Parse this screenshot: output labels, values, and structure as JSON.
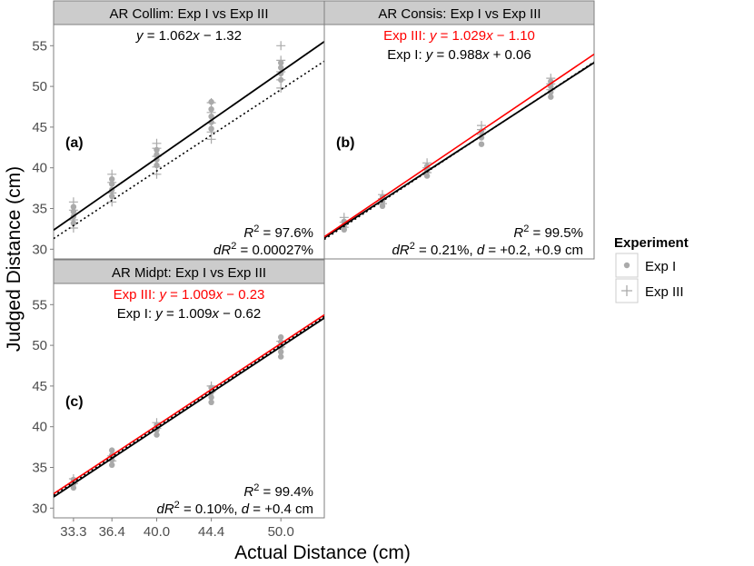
{
  "figure": {
    "xlabel": "Actual Distance (cm)",
    "ylabel": "Judged Distance (cm)",
    "x_ticks": [
      "33.3",
      "36.4",
      "40.0",
      "44.4",
      "50.0"
    ],
    "y_ticks": [
      "30",
      "35",
      "40",
      "45",
      "50",
      "55"
    ],
    "legend_title": "Experiment",
    "legend_items": [
      "Exp I",
      "Exp III"
    ]
  },
  "colors": {
    "exp3_line": "#ff0000",
    "exp1_line": "#000000",
    "points": "#aaaaaa",
    "strip": "#cccccc",
    "frame": "#7f7f7f"
  },
  "chart_data": [
    {
      "type": "scatter",
      "strip": "AR Collim: Exp I vs Exp III",
      "label": "(a)",
      "xlim": [
        31.7,
        53.5
      ],
      "ylim": [
        28.8,
        57.6
      ],
      "eq_lines": [
        "y = 1.062x − 1.32"
      ],
      "r2_line": "R² = 97.6%",
      "dr2_line": "dR² = 0.00027%",
      "fits": [
        {
          "series": "Exp I",
          "slope": 1.062,
          "intercept": -1.32,
          "style": "solid"
        },
        {
          "series": "Exp III",
          "slope": 1.0,
          "intercept": -0.4,
          "style": "dotted"
        }
      ],
      "points": {
        "Exp I": [
          [
            33.3,
            33.2
          ],
          [
            33.3,
            34.0
          ],
          [
            33.3,
            34.6
          ],
          [
            33.3,
            35.2
          ],
          [
            36.4,
            36.5
          ],
          [
            36.4,
            37.3
          ],
          [
            36.4,
            38.0
          ],
          [
            36.4,
            38.6
          ],
          [
            40.0,
            40.3
          ],
          [
            40.0,
            41.0
          ],
          [
            40.0,
            41.6
          ],
          [
            40.0,
            42.2
          ],
          [
            44.4,
            44.8
          ],
          [
            44.4,
            45.6
          ],
          [
            44.4,
            46.3
          ],
          [
            44.4,
            47.2
          ],
          [
            44.4,
            48.1
          ],
          [
            50.0,
            50.8
          ],
          [
            50.0,
            51.6
          ],
          [
            50.0,
            52.3
          ],
          [
            50.0,
            52.9
          ]
        ],
        "Exp III": [
          [
            33.3,
            32.6
          ],
          [
            33.3,
            33.6
          ],
          [
            33.3,
            34.8
          ],
          [
            33.3,
            35.8
          ],
          [
            36.4,
            35.8
          ],
          [
            36.4,
            36.9
          ],
          [
            36.4,
            38.2
          ],
          [
            36.4,
            39.2
          ],
          [
            40.0,
            39.2
          ],
          [
            40.0,
            40.1
          ],
          [
            40.0,
            41.4
          ],
          [
            40.0,
            42.4
          ],
          [
            40.0,
            43.0
          ],
          [
            44.4,
            43.5
          ],
          [
            44.4,
            44.4
          ],
          [
            44.4,
            45.5
          ],
          [
            44.4,
            46.8
          ],
          [
            44.4,
            48.0
          ],
          [
            50.0,
            49.8
          ],
          [
            50.0,
            50.8
          ],
          [
            50.0,
            51.8
          ],
          [
            50.0,
            53.2
          ],
          [
            50.0,
            55.0
          ]
        ]
      }
    },
    {
      "type": "scatter",
      "strip": "AR Consis: Exp I vs Exp III",
      "label": "(b)",
      "xlim": [
        31.7,
        53.5
      ],
      "ylim": [
        28.8,
        57.6
      ],
      "eq_lines_red": [
        "Exp III: y = 1.029x − 1.10"
      ],
      "eq_lines": [
        "Exp I: y = 0.988x + 0.06"
      ],
      "r2_line": "R² = 99.5%",
      "dr2_line": "dR² = 0.21%, d = +0.2, +0.9 cm",
      "fits": [
        {
          "series": "Exp III",
          "slope": 1.029,
          "intercept": -1.1,
          "style": "red"
        },
        {
          "series": "Exp I",
          "slope": 0.988,
          "intercept": 0.06,
          "style": "solid"
        },
        {
          "series": "All",
          "slope": 1.0,
          "intercept": -0.5,
          "style": "dotted"
        }
      ],
      "points": {
        "Exp I": [
          [
            33.3,
            32.4
          ],
          [
            33.3,
            32.9
          ],
          [
            33.3,
            33.4
          ],
          [
            36.4,
            35.3
          ],
          [
            36.4,
            35.9
          ],
          [
            36.4,
            36.4
          ],
          [
            40.0,
            39.0
          ],
          [
            40.0,
            39.6
          ],
          [
            40.0,
            40.2
          ],
          [
            44.4,
            42.9
          ],
          [
            44.4,
            43.7
          ],
          [
            44.4,
            44.5
          ],
          [
            50.0,
            48.7
          ],
          [
            50.0,
            49.3
          ],
          [
            50.0,
            50.0
          ],
          [
            50.0,
            50.6
          ]
        ],
        "Exp III": [
          [
            33.3,
            32.7
          ],
          [
            33.3,
            33.3
          ],
          [
            33.3,
            33.9
          ],
          [
            36.4,
            35.6
          ],
          [
            36.4,
            36.2
          ],
          [
            36.4,
            36.7
          ],
          [
            40.0,
            39.4
          ],
          [
            40.0,
            40.0
          ],
          [
            40.0,
            40.6
          ],
          [
            44.4,
            44.1
          ],
          [
            44.4,
            44.7
          ],
          [
            44.4,
            45.2
          ],
          [
            50.0,
            49.6
          ],
          [
            50.0,
            50.3
          ],
          [
            50.0,
            51.0
          ]
        ]
      }
    },
    {
      "type": "scatter",
      "strip": "AR Midpt: Exp I vs Exp III",
      "label": "(c)",
      "xlim": [
        31.7,
        53.5
      ],
      "ylim": [
        28.8,
        57.6
      ],
      "eq_lines_red": [
        "Exp III: y = 1.009x − 0.23"
      ],
      "eq_lines": [
        "Exp I: y = 1.009x − 0.62"
      ],
      "r2_line": "R² = 99.4%",
      "dr2_line": "dR² = 0.10%, d = +0.4 cm",
      "fits": [
        {
          "series": "Exp III",
          "slope": 1.009,
          "intercept": -0.23,
          "style": "red"
        },
        {
          "series": "Exp I",
          "slope": 1.009,
          "intercept": -0.62,
          "style": "solid"
        },
        {
          "series": "All",
          "slope": 1.009,
          "intercept": -0.42,
          "style": "dotted"
        }
      ],
      "points": {
        "Exp I": [
          [
            33.3,
            32.5
          ],
          [
            33.3,
            33.0
          ],
          [
            33.3,
            33.5
          ],
          [
            36.4,
            35.3
          ],
          [
            36.4,
            35.9
          ],
          [
            36.4,
            36.5
          ],
          [
            36.4,
            37.1
          ],
          [
            40.0,
            39.0
          ],
          [
            40.0,
            39.6
          ],
          [
            40.0,
            40.2
          ],
          [
            44.4,
            43.0
          ],
          [
            44.4,
            43.6
          ],
          [
            44.4,
            44.2
          ],
          [
            44.4,
            44.8
          ],
          [
            50.0,
            48.6
          ],
          [
            50.0,
            49.2
          ],
          [
            50.0,
            49.8
          ],
          [
            50.0,
            50.4
          ],
          [
            50.0,
            51.0
          ]
        ],
        "Exp III": [
          [
            33.3,
            33.0
          ],
          [
            33.3,
            33.6
          ],
          [
            36.4,
            35.8
          ],
          [
            36.4,
            36.4
          ],
          [
            40.0,
            39.8
          ],
          [
            40.0,
            40.5
          ],
          [
            44.4,
            44.3
          ],
          [
            44.4,
            45.0
          ],
          [
            50.0,
            49.8
          ],
          [
            50.0,
            50.5
          ]
        ]
      }
    }
  ]
}
